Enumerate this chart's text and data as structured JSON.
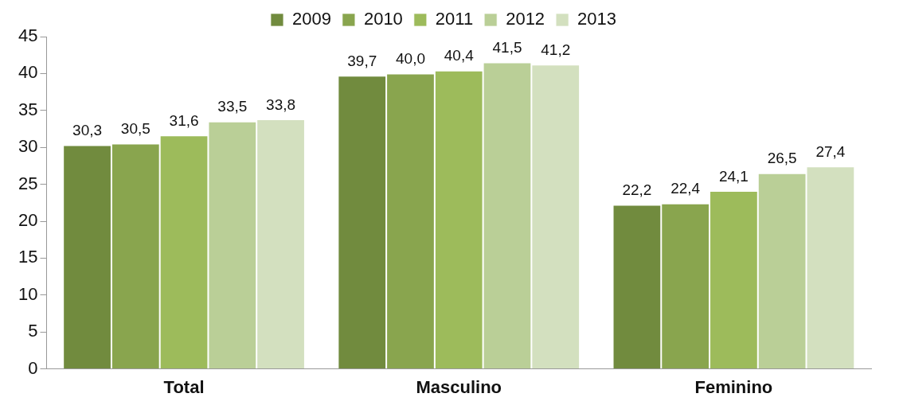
{
  "chart_data": {
    "type": "bar",
    "categories": [
      "Total",
      "Masculino",
      "Feminino"
    ],
    "series": [
      {
        "name": "2009",
        "color": "#718b3e",
        "values": [
          30.3,
          39.7,
          22.2
        ],
        "value_labels": [
          "30,3",
          "39,7",
          "22,2"
        ]
      },
      {
        "name": "2010",
        "color": "#89a54e",
        "values": [
          30.5,
          40.0,
          22.4
        ],
        "value_labels": [
          "30,5",
          "40,0",
          "22,4"
        ]
      },
      {
        "name": "2011",
        "color": "#9dbb5b",
        "values": [
          31.6,
          40.4,
          24.1
        ],
        "value_labels": [
          "31,6",
          "40,4",
          "24,1"
        ]
      },
      {
        "name": "2012",
        "color": "#bacf97",
        "values": [
          33.5,
          41.5,
          26.5
        ],
        "value_labels": [
          "33,5",
          "41,5",
          "26,5"
        ]
      },
      {
        "name": "2013",
        "color": "#d3e0bf",
        "values": [
          33.8,
          41.2,
          27.4
        ],
        "value_labels": [
          "33,8",
          "41,2",
          "27,4"
        ]
      }
    ],
    "ylim": [
      0,
      45
    ],
    "yticks": [
      0,
      5,
      10,
      15,
      20,
      25,
      30,
      35,
      40,
      45
    ],
    "grid": false,
    "legend": "top"
  }
}
